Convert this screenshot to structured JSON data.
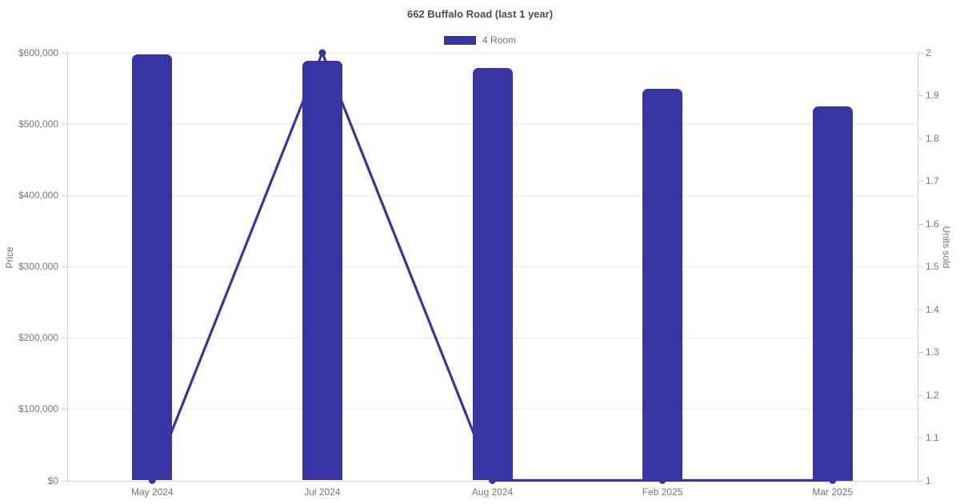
{
  "chart_data": {
    "type": "bar",
    "title": "662 Buffalo Road (last 1 year)",
    "legend": [
      {
        "label": "4 Room",
        "color": "#3834a3"
      }
    ],
    "legend_position": "top",
    "grid": true,
    "categories": [
      "May 2024",
      "Jul 2024",
      "Aug 2024",
      "Feb 2025",
      "Mar 2025"
    ],
    "series": [
      {
        "name": "Price",
        "type": "bar",
        "axis": "left",
        "color": "#3834a3",
        "values": [
          598000,
          589000,
          579000,
          549000,
          525000
        ]
      },
      {
        "name": "Units sold",
        "type": "line",
        "axis": "right",
        "color": "#3834a3",
        "values": [
          1,
          2,
          1,
          1,
          1
        ]
      }
    ],
    "left_axis": {
      "label": "Price",
      "min": 0,
      "max": 600000,
      "tick_step": 100000,
      "ticks": [
        "$600,000",
        "$500,000",
        "$400,000",
        "$300,000",
        "$200,000",
        "$100,000",
        "$0"
      ]
    },
    "right_axis": {
      "label": "Units sold",
      "min": 1,
      "max": 2,
      "tick_step": 0.1,
      "ticks": [
        "2",
        "1.9",
        "1.8",
        "1.7",
        "1.6",
        "1.5",
        "1.4",
        "1.3",
        "1.2",
        "1.1",
        "1"
      ]
    },
    "colors": {
      "bar": "#3834a3",
      "line": "#3834a3",
      "marker": "#3834a3",
      "grid": "#e9e9e9",
      "axis_line": "#d2d2d2",
      "tick": "#d2d2d2",
      "tick_text": "#777777",
      "title_text": "#4d4d4d"
    }
  }
}
